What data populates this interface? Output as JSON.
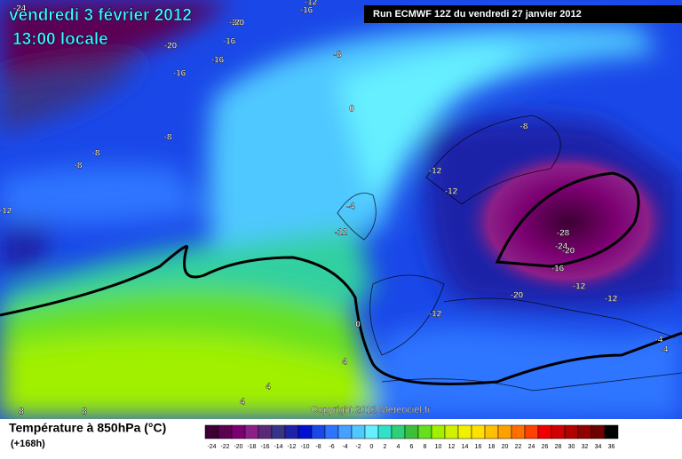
{
  "header": {
    "date": "vendredi 3 février 2012",
    "time": "13:00 locale",
    "run": "Run ECMWF 12Z du vendredi 27 janvier 2012"
  },
  "copyright": "Copyright 2012 Meteociel.fr",
  "footer": {
    "title": "Température à 850hPa (°C)",
    "lead": "(+168h)"
  },
  "legend": [
    {
      "label": -24,
      "color": "#3c0032"
    },
    {
      "label": -22,
      "color": "#5c0052"
    },
    {
      "label": -20,
      "color": "#7c0072"
    },
    {
      "label": -18,
      "color": "#8c2088"
    },
    {
      "label": -16,
      "color": "#5a2a78"
    },
    {
      "label": -14,
      "color": "#38348a"
    },
    {
      "label": -12,
      "color": "#1e22a8"
    },
    {
      "label": -10,
      "color": "#0010d0"
    },
    {
      "label": -8,
      "color": "#1a48e8"
    },
    {
      "label": -6,
      "color": "#2e74ff"
    },
    {
      "label": -4,
      "color": "#46a0ff"
    },
    {
      "label": -2,
      "color": "#50c8ff"
    },
    {
      "label": 0,
      "color": "#66f0ff"
    },
    {
      "label": 2,
      "color": "#30e0c8"
    },
    {
      "label": 4,
      "color": "#30d078"
    },
    {
      "label": 6,
      "color": "#3cc03c"
    },
    {
      "label": 8,
      "color": "#64e01c"
    },
    {
      "label": 10,
      "color": "#a0f000"
    },
    {
      "label": 12,
      "color": "#d0f000"
    },
    {
      "label": 14,
      "color": "#f0f000"
    },
    {
      "label": 16,
      "color": "#ffe000"
    },
    {
      "label": 18,
      "color": "#ffc000"
    },
    {
      "label": 20,
      "color": "#ffa000"
    },
    {
      "label": 22,
      "color": "#ff7000"
    },
    {
      "label": 24,
      "color": "#ff4000"
    },
    {
      "label": 26,
      "color": "#f00000"
    },
    {
      "label": 28,
      "color": "#d00000"
    },
    {
      "label": 30,
      "color": "#b00000"
    },
    {
      "label": 32,
      "color": "#900000"
    },
    {
      "label": 34,
      "color": "#700000"
    },
    {
      "label": 36,
      "color": "#000000"
    }
  ],
  "map_labels": [
    -24,
    -20,
    -16,
    -20,
    -16,
    -16,
    -8,
    -16,
    -20,
    0,
    -8,
    -8,
    -8,
    -12,
    -12,
    -12,
    -4,
    -12,
    -28,
    -24,
    -20,
    -16,
    -12,
    -12,
    -20,
    -12,
    0,
    4,
    4,
    4,
    8,
    8,
    -4,
    -4,
    -8,
    -12
  ]
}
